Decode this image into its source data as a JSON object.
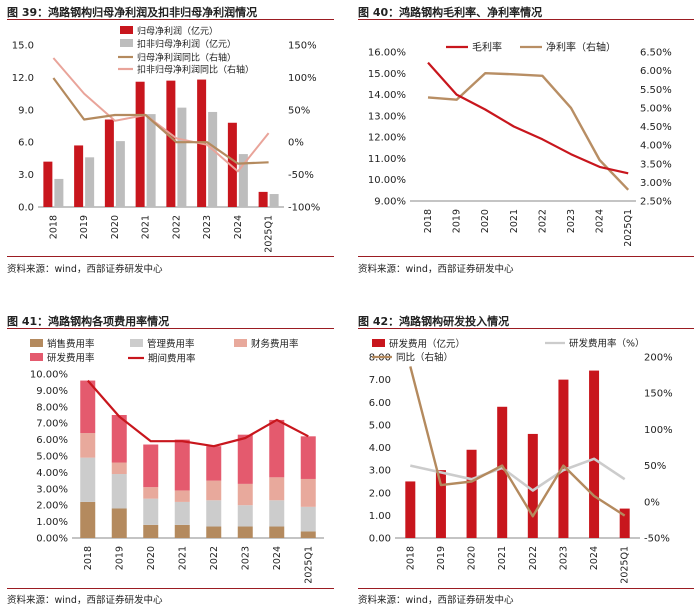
{
  "colors": {
    "red": "#c8161d",
    "grey": "#bdbdbd",
    "brown": "#b48a5e",
    "pink": "#e9a49a",
    "salmon": "#e8a99c",
    "hotpink": "#e45a6e",
    "tan": "#b88e64",
    "lightgrey": "#cccccc"
  },
  "source_text": "资料来源：wind，西部证券研发中心",
  "chart_data": [
    {
      "id": "fig39",
      "type": "bar+line",
      "fig_title": "图 39：鸿路钢构归母净利润及扣非归母净利润情况",
      "categories": [
        "2018",
        "2019",
        "2020",
        "2021",
        "2022",
        "2023",
        "2024",
        "2025Q1"
      ],
      "left_ticks": [
        "0.0",
        "3.0",
        "6.0",
        "9.0",
        "12.0",
        "15.0"
      ],
      "right_ticks": [
        "-100%",
        "-50%",
        "0%",
        "50%",
        "100%",
        "150%"
      ],
      "ylim_left": [
        0,
        15
      ],
      "ylim_right": [
        -100,
        150
      ],
      "series": [
        {
          "name": "归母净利润（亿元）",
          "type": "bar",
          "axis": "left",
          "color": "#c8161d",
          "values": [
            4.2,
            5.7,
            8.1,
            11.6,
            11.7,
            11.8,
            7.8,
            1.4
          ]
        },
        {
          "name": "扣非归母净利润（亿元）",
          "type": "bar",
          "axis": "left",
          "color": "#bdbdbd",
          "values": [
            2.6,
            4.6,
            6.1,
            8.6,
            9.2,
            8.8,
            4.9,
            1.2
          ]
        },
        {
          "name": "归母净利润同比（右轴）",
          "type": "line",
          "axis": "right",
          "color": "#b48a5e",
          "values": [
            99,
            35,
            42,
            42,
            0,
            0,
            -33,
            -31
          ]
        },
        {
          "name": "扣非归母净利润同比（右轴）",
          "type": "line",
          "axis": "right",
          "color": "#e9a49a",
          "values": [
            130,
            75,
            33,
            42,
            6,
            -4,
            -45,
            14
          ]
        }
      ]
    },
    {
      "id": "fig40",
      "type": "line",
      "fig_title": "图 40：鸿路钢构毛利率、净利率情况",
      "categories": [
        "2018",
        "2019",
        "2020",
        "2021",
        "2022",
        "2023",
        "2024",
        "2025Q1"
      ],
      "left_ticks": [
        "9.00%",
        "10.00%",
        "11.00%",
        "12.00%",
        "13.00%",
        "14.00%",
        "15.00%",
        "16.00%"
      ],
      "right_ticks": [
        "2.50%",
        "3.00%",
        "3.50%",
        "4.00%",
        "4.50%",
        "5.00%",
        "5.50%",
        "6.00%",
        "6.50%"
      ],
      "ylim_left": [
        9,
        16
      ],
      "ylim_right": [
        2.5,
        6.5
      ],
      "series": [
        {
          "name": "毛利率",
          "axis": "left",
          "color": "#c8161d",
          "values": [
            15.5,
            14.0,
            13.3,
            12.5,
            11.9,
            11.2,
            10.6,
            10.3
          ]
        },
        {
          "name": "净利率（右轴）",
          "axis": "right",
          "color": "#b88e64",
          "values": [
            5.28,
            5.22,
            5.93,
            5.9,
            5.86,
            5.0,
            3.6,
            2.8
          ]
        }
      ]
    },
    {
      "id": "fig41",
      "type": "stacked-bar+line",
      "fig_title": "图 41：鸿路钢构各项费用率情况",
      "categories": [
        "2018",
        "2019",
        "2020",
        "2021",
        "2022",
        "2023",
        "2024",
        "2025Q1"
      ],
      "left_ticks": [
        "0.00%",
        "1.00%",
        "2.00%",
        "3.00%",
        "4.00%",
        "5.00%",
        "6.00%",
        "7.00%",
        "8.00%",
        "9.00%",
        "10.00%"
      ],
      "ylim": [
        0,
        10
      ],
      "series": [
        {
          "name": "销售费用率",
          "type": "bar",
          "color": "#b48a5e",
          "values": [
            2.2,
            1.8,
            0.8,
            0.8,
            0.7,
            0.7,
            0.7,
            0.4
          ]
        },
        {
          "name": "管理费用率",
          "type": "bar",
          "color": "#cccccc",
          "values": [
            2.7,
            2.1,
            1.6,
            1.4,
            1.6,
            1.3,
            1.6,
            1.5
          ]
        },
        {
          "name": "财务费用率",
          "type": "bar",
          "color": "#e8a99c",
          "values": [
            1.5,
            0.7,
            0.7,
            0.7,
            1.2,
            1.3,
            1.4,
            1.7
          ]
        },
        {
          "name": "研发费用率",
          "type": "bar",
          "color": "#e45a6e",
          "values": [
            3.2,
            2.9,
            2.6,
            3.1,
            2.1,
            3.0,
            3.5,
            2.6
          ]
        },
        {
          "name": "期间费用率",
          "type": "line",
          "color": "#c8161d",
          "values": [
            9.6,
            7.4,
            5.9,
            5.9,
            5.6,
            6.1,
            7.2,
            6.2
          ]
        }
      ]
    },
    {
      "id": "fig42",
      "type": "bar+line",
      "fig_title": "图 42：鸿路钢构研发投入情况",
      "categories": [
        "2018",
        "2019",
        "2020",
        "2021",
        "2022",
        "2023",
        "2024",
        "2025Q1"
      ],
      "left_ticks": [
        "0.00",
        "1.00",
        "2.00",
        "3.00",
        "4.00",
        "5.00",
        "6.00",
        "7.00",
        "8.00"
      ],
      "right_ticks": [
        "-50%",
        "0%",
        "50%",
        "100%",
        "150%",
        "200%"
      ],
      "ylim_left": [
        0,
        8
      ],
      "ylim_right": [
        -50,
        200
      ],
      "series": [
        {
          "name": "研发费用（亿元）",
          "type": "bar",
          "axis": "left",
          "color": "#c8161d",
          "values": [
            2.5,
            3.0,
            3.9,
            5.8,
            4.6,
            7.0,
            7.4,
            1.3
          ]
        },
        {
          "name": "研发费用率（%）",
          "type": "line",
          "axis": "left",
          "color": "#cccccc",
          "values": [
            3.2,
            2.9,
            2.6,
            3.1,
            2.1,
            3.0,
            3.5,
            2.6
          ]
        },
        {
          "name": "同比（右轴）",
          "type": "line",
          "axis": "right",
          "color": "#b48a5e",
          "values": [
            187,
            23,
            28,
            50,
            -20,
            50,
            8,
            -19
          ]
        }
      ]
    }
  ]
}
